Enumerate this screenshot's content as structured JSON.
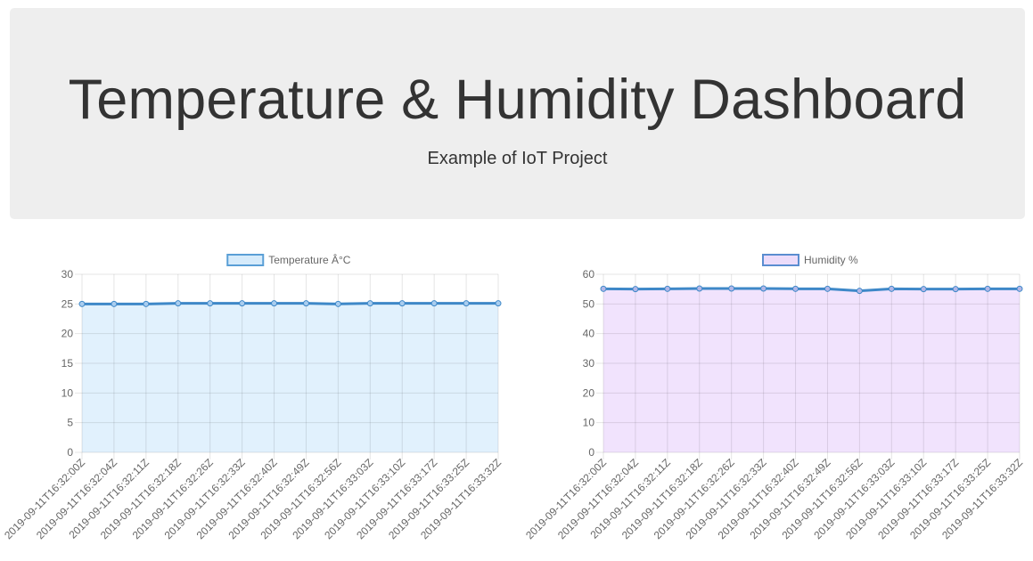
{
  "header": {
    "title": "Temperature & Humidity Dashboard",
    "subtitle": "Example of IoT Project"
  },
  "chart_data": [
    {
      "type": "area",
      "legend": "top",
      "grid": true,
      "series": [
        {
          "name": "Temperature Â°C",
          "values": [
            25,
            25,
            25,
            25.1,
            25.1,
            25.1,
            25.1,
            25.1,
            25,
            25.1,
            25.1,
            25.1,
            25.1,
            25.1
          ]
        }
      ],
      "categories": [
        "2019-09-11T16:32:00Z",
        "2019-09-11T16:32:04Z",
        "2019-09-11T16:32:11Z",
        "2019-09-11T16:32:18Z",
        "2019-09-11T16:32:26Z",
        "2019-09-11T16:32:33Z",
        "2019-09-11T16:32:40Z",
        "2019-09-11T16:32:49Z",
        "2019-09-11T16:32:56Z",
        "2019-09-11T16:33:03Z",
        "2019-09-11T16:33:10Z",
        "2019-09-11T16:33:17Z",
        "2019-09-11T16:33:25Z",
        "2019-09-11T16:33:32Z"
      ],
      "ylim": [
        0,
        30
      ],
      "yticks": [
        0,
        5,
        10,
        15,
        20,
        25,
        30
      ],
      "colors": {
        "line": "#3e88c8",
        "fill": "#e1f1fd",
        "point": "#a9cdef",
        "legend_fill": "#d6ebfb",
        "legend_border": "#5a9fd6"
      }
    },
    {
      "type": "area",
      "legend": "top",
      "grid": true,
      "series": [
        {
          "name": "Humidity %",
          "values": [
            55.1,
            55,
            55.1,
            55.2,
            55.2,
            55.2,
            55.1,
            55.1,
            54.4,
            55.1,
            55,
            55,
            55.1,
            55.1
          ]
        }
      ],
      "categories": [
        "2019-09-11T16:32:00Z",
        "2019-09-11T16:32:04Z",
        "2019-09-11T16:32:11Z",
        "2019-09-11T16:32:18Z",
        "2019-09-11T16:32:26Z",
        "2019-09-11T16:32:33Z",
        "2019-09-11T16:32:40Z",
        "2019-09-11T16:32:49Z",
        "2019-09-11T16:32:56Z",
        "2019-09-11T16:33:03Z",
        "2019-09-11T16:33:10Z",
        "2019-09-11T16:33:17Z",
        "2019-09-11T16:33:25Z",
        "2019-09-11T16:33:32Z"
      ],
      "ylim": [
        0,
        60
      ],
      "yticks": [
        0,
        10,
        20,
        30,
        40,
        50,
        60
      ],
      "colors": {
        "line": "#3e88c8",
        "fill": "#f1e3fd",
        "point": "#b2b7e8",
        "legend_fill": "#ecdcfa",
        "legend_border": "#5a8dd0"
      }
    }
  ]
}
